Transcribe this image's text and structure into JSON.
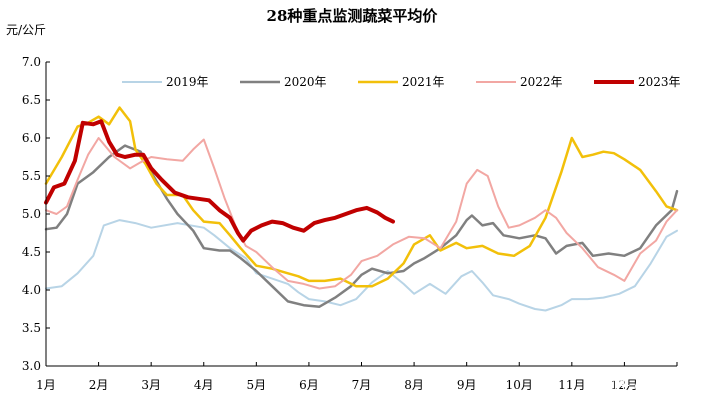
{
  "chart_data": {
    "type": "line",
    "title": "28种重点监测蔬菜平均价",
    "unit_label": "元/公斤",
    "ylim": [
      3.0,
      7.0
    ],
    "yticks": [
      "3.0",
      "3.5",
      "4.0",
      "4.5",
      "5.0",
      "5.5",
      "6.0",
      "6.5",
      "7.0"
    ],
    "xlim": [
      1,
      13
    ],
    "xtick_labels": [
      "1月",
      "2月",
      "3月",
      "4月",
      "5月",
      "6月",
      "7月",
      "8月",
      "9月",
      "10月",
      "11月",
      "12月"
    ],
    "grid": false,
    "legend_position": "top",
    "watermark": "知乎 @Ph迪",
    "series": [
      {
        "name": "2019年",
        "color": "#b8d4e6",
        "width": 2,
        "points": [
          [
            1.0,
            4.02
          ],
          [
            1.3,
            4.05
          ],
          [
            1.6,
            4.22
          ],
          [
            1.9,
            4.45
          ],
          [
            2.1,
            4.85
          ],
          [
            2.4,
            4.92
          ],
          [
            2.7,
            4.88
          ],
          [
            3.0,
            4.82
          ],
          [
            3.5,
            4.88
          ],
          [
            4.0,
            4.82
          ],
          [
            4.2,
            4.72
          ],
          [
            4.5,
            4.55
          ],
          [
            4.8,
            4.42
          ],
          [
            5.0,
            4.22
          ],
          [
            5.3,
            4.15
          ],
          [
            5.6,
            4.08
          ],
          [
            5.8,
            3.97
          ],
          [
            6.0,
            3.88
          ],
          [
            6.3,
            3.85
          ],
          [
            6.6,
            3.8
          ],
          [
            6.9,
            3.88
          ],
          [
            7.2,
            4.1
          ],
          [
            7.5,
            4.25
          ],
          [
            7.8,
            4.08
          ],
          [
            8.0,
            3.95
          ],
          [
            8.3,
            4.08
          ],
          [
            8.6,
            3.95
          ],
          [
            8.9,
            4.18
          ],
          [
            9.1,
            4.25
          ],
          [
            9.3,
            4.1
          ],
          [
            9.5,
            3.93
          ],
          [
            9.8,
            3.88
          ],
          [
            10.0,
            3.82
          ],
          [
            10.3,
            3.75
          ],
          [
            10.5,
            3.73
          ],
          [
            10.8,
            3.8
          ],
          [
            11.0,
            3.88
          ],
          [
            11.3,
            3.88
          ],
          [
            11.6,
            3.9
          ],
          [
            11.9,
            3.95
          ],
          [
            12.2,
            4.05
          ],
          [
            12.5,
            4.35
          ],
          [
            12.8,
            4.7
          ],
          [
            13.0,
            4.78
          ]
        ]
      },
      {
        "name": "2020年",
        "color": "#808080",
        "width": 2.5,
        "points": [
          [
            1.0,
            4.8
          ],
          [
            1.2,
            4.82
          ],
          [
            1.4,
            5.0
          ],
          [
            1.6,
            5.4
          ],
          [
            1.9,
            5.55
          ],
          [
            2.2,
            5.75
          ],
          [
            2.5,
            5.9
          ],
          [
            2.8,
            5.82
          ],
          [
            3.0,
            5.55
          ],
          [
            3.3,
            5.2
          ],
          [
            3.5,
            5.0
          ],
          [
            3.8,
            4.78
          ],
          [
            4.0,
            4.55
          ],
          [
            4.3,
            4.52
          ],
          [
            4.5,
            4.52
          ],
          [
            4.7,
            4.42
          ],
          [
            5.0,
            4.25
          ],
          [
            5.3,
            4.05
          ],
          [
            5.6,
            3.85
          ],
          [
            5.9,
            3.8
          ],
          [
            6.2,
            3.78
          ],
          [
            6.5,
            3.9
          ],
          [
            6.8,
            4.05
          ],
          [
            7.0,
            4.2
          ],
          [
            7.2,
            4.28
          ],
          [
            7.5,
            4.22
          ],
          [
            7.8,
            4.25
          ],
          [
            8.0,
            4.35
          ],
          [
            8.2,
            4.42
          ],
          [
            8.5,
            4.55
          ],
          [
            8.8,
            4.72
          ],
          [
            9.0,
            4.92
          ],
          [
            9.1,
            4.98
          ],
          [
            9.3,
            4.85
          ],
          [
            9.5,
            4.88
          ],
          [
            9.7,
            4.72
          ],
          [
            10.0,
            4.68
          ],
          [
            10.3,
            4.72
          ],
          [
            10.5,
            4.68
          ],
          [
            10.7,
            4.48
          ],
          [
            10.9,
            4.58
          ],
          [
            11.2,
            4.62
          ],
          [
            11.4,
            4.45
          ],
          [
            11.7,
            4.48
          ],
          [
            12.0,
            4.45
          ],
          [
            12.3,
            4.55
          ],
          [
            12.6,
            4.85
          ],
          [
            12.9,
            5.05
          ],
          [
            13.0,
            5.3
          ]
        ]
      },
      {
        "name": "2021年",
        "color": "#f2c00a",
        "width": 2.5,
        "points": [
          [
            1.0,
            5.4
          ],
          [
            1.3,
            5.75
          ],
          [
            1.6,
            6.15
          ],
          [
            1.8,
            6.2
          ],
          [
            2.0,
            6.28
          ],
          [
            2.2,
            6.18
          ],
          [
            2.4,
            6.4
          ],
          [
            2.6,
            6.22
          ],
          [
            2.7,
            5.85
          ],
          [
            2.9,
            5.65
          ],
          [
            3.1,
            5.4
          ],
          [
            3.3,
            5.25
          ],
          [
            3.6,
            5.25
          ],
          [
            3.8,
            5.05
          ],
          [
            4.0,
            4.9
          ],
          [
            4.3,
            4.88
          ],
          [
            4.5,
            4.72
          ],
          [
            4.7,
            4.55
          ],
          [
            5.0,
            4.32
          ],
          [
            5.3,
            4.28
          ],
          [
            5.6,
            4.22
          ],
          [
            5.8,
            4.18
          ],
          [
            6.0,
            4.12
          ],
          [
            6.3,
            4.12
          ],
          [
            6.6,
            4.15
          ],
          [
            6.9,
            4.05
          ],
          [
            7.2,
            4.05
          ],
          [
            7.5,
            4.15
          ],
          [
            7.8,
            4.35
          ],
          [
            8.0,
            4.6
          ],
          [
            8.3,
            4.72
          ],
          [
            8.5,
            4.52
          ],
          [
            8.8,
            4.62
          ],
          [
            9.0,
            4.55
          ],
          [
            9.3,
            4.58
          ],
          [
            9.6,
            4.48
          ],
          [
            9.9,
            4.45
          ],
          [
            10.2,
            4.58
          ],
          [
            10.5,
            4.95
          ],
          [
            10.8,
            5.55
          ],
          [
            11.0,
            6.0
          ],
          [
            11.2,
            5.75
          ],
          [
            11.4,
            5.78
          ],
          [
            11.6,
            5.82
          ],
          [
            11.8,
            5.8
          ],
          [
            12.0,
            5.72
          ],
          [
            12.3,
            5.58
          ],
          [
            12.6,
            5.3
          ],
          [
            12.8,
            5.1
          ],
          [
            13.0,
            5.05
          ]
        ]
      },
      {
        "name": "2022年",
        "color": "#f2a7a3",
        "width": 2,
        "points": [
          [
            1.0,
            5.05
          ],
          [
            1.2,
            5.0
          ],
          [
            1.4,
            5.1
          ],
          [
            1.6,
            5.45
          ],
          [
            1.8,
            5.78
          ],
          [
            2.0,
            6.0
          ],
          [
            2.3,
            5.75
          ],
          [
            2.6,
            5.6
          ],
          [
            2.8,
            5.68
          ],
          [
            3.0,
            5.75
          ],
          [
            3.3,
            5.72
          ],
          [
            3.6,
            5.7
          ],
          [
            3.8,
            5.85
          ],
          [
            4.0,
            5.98
          ],
          [
            4.2,
            5.6
          ],
          [
            4.4,
            5.2
          ],
          [
            4.6,
            4.85
          ],
          [
            4.8,
            4.58
          ],
          [
            5.0,
            4.5
          ],
          [
            5.3,
            4.3
          ],
          [
            5.6,
            4.12
          ],
          [
            5.9,
            4.08
          ],
          [
            6.2,
            4.02
          ],
          [
            6.5,
            4.05
          ],
          [
            6.8,
            4.2
          ],
          [
            7.0,
            4.38
          ],
          [
            7.3,
            4.45
          ],
          [
            7.6,
            4.6
          ],
          [
            7.9,
            4.7
          ],
          [
            8.2,
            4.68
          ],
          [
            8.5,
            4.55
          ],
          [
            8.8,
            4.9
          ],
          [
            9.0,
            5.4
          ],
          [
            9.2,
            5.58
          ],
          [
            9.4,
            5.5
          ],
          [
            9.6,
            5.1
          ],
          [
            9.8,
            4.82
          ],
          [
            10.0,
            4.85
          ],
          [
            10.3,
            4.95
          ],
          [
            10.5,
            5.05
          ],
          [
            10.7,
            4.95
          ],
          [
            10.9,
            4.75
          ],
          [
            11.2,
            4.55
          ],
          [
            11.5,
            4.3
          ],
          [
            11.8,
            4.2
          ],
          [
            12.0,
            4.12
          ],
          [
            12.3,
            4.48
          ],
          [
            12.6,
            4.65
          ],
          [
            12.8,
            4.9
          ],
          [
            13.0,
            5.05
          ]
        ]
      },
      {
        "name": "2023年",
        "color": "#c00000",
        "width": 4,
        "points": [
          [
            1.0,
            5.15
          ],
          [
            1.15,
            5.35
          ],
          [
            1.35,
            5.4
          ],
          [
            1.55,
            5.7
          ],
          [
            1.7,
            6.2
          ],
          [
            1.9,
            6.18
          ],
          [
            2.05,
            6.22
          ],
          [
            2.2,
            5.95
          ],
          [
            2.35,
            5.78
          ],
          [
            2.5,
            5.75
          ],
          [
            2.7,
            5.78
          ],
          [
            2.85,
            5.78
          ],
          [
            3.0,
            5.6
          ],
          [
            3.2,
            5.45
          ],
          [
            3.45,
            5.28
          ],
          [
            3.7,
            5.22
          ],
          [
            3.9,
            5.2
          ],
          [
            4.1,
            5.18
          ],
          [
            4.3,
            5.05
          ],
          [
            4.5,
            4.95
          ],
          [
            4.65,
            4.75
          ],
          [
            4.75,
            4.65
          ],
          [
            4.9,
            4.78
          ],
          [
            5.1,
            4.85
          ],
          [
            5.3,
            4.9
          ],
          [
            5.5,
            4.88
          ],
          [
            5.7,
            4.82
          ],
          [
            5.9,
            4.78
          ],
          [
            6.1,
            4.88
          ],
          [
            6.3,
            4.92
          ],
          [
            6.5,
            4.95
          ],
          [
            6.7,
            5.0
          ],
          [
            6.9,
            5.05
          ],
          [
            7.1,
            5.08
          ],
          [
            7.3,
            5.02
          ],
          [
            7.45,
            4.95
          ],
          [
            7.6,
            4.9
          ]
        ]
      }
    ]
  }
}
